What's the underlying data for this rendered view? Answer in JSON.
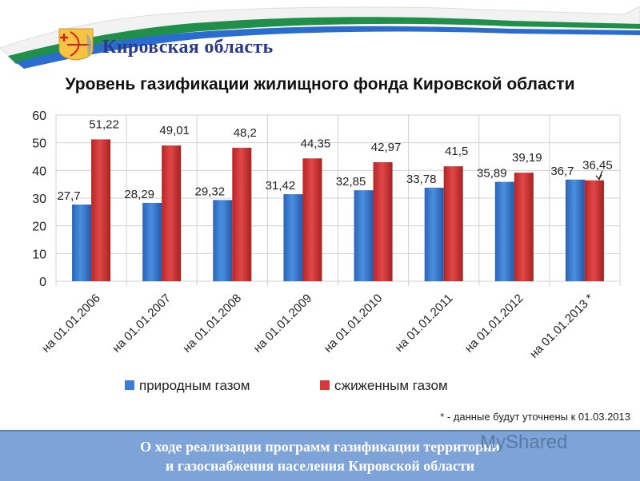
{
  "header": {
    "region_title": "Кировская область",
    "ribbon_colors": [
      "#ffffff",
      "#1f8f4a",
      "#2b6ccf"
    ]
  },
  "chart_title": "Уровень газификации жилищного фонда Кировской области",
  "chart_data": {
    "type": "bar",
    "title": "Уровень газификации жилищного фонда Кировской области",
    "categories": [
      "на 01.01.2006",
      "на 01.01.2007",
      "на 01.01.2008",
      "на 01.01.2009",
      "на 01.01.2010",
      "на 01.01.2011",
      "на 01.01.2012",
      "на 01.01.2013 *"
    ],
    "series": [
      {
        "name": "природным газом",
        "color": "#3a7fd5",
        "values": [
          27.7,
          28.29,
          29.32,
          31.42,
          32.85,
          33.78,
          35.89,
          36.7
        ],
        "labels": [
          "27,7",
          "28,29",
          "29,32",
          "31,42",
          "32,85",
          "33,78",
          "35,89",
          "36,7"
        ]
      },
      {
        "name": "сжиженным газом",
        "color": "#d83a3a",
        "values": [
          51.22,
          49.01,
          48.2,
          44.35,
          42.97,
          41.5,
          39.19,
          36.45
        ],
        "labels": [
          "51,22",
          "49,01",
          "48,2",
          "44,35",
          "42,97",
          "41,5",
          "39,19",
          "36,45"
        ]
      }
    ],
    "xlabel": "",
    "ylabel": "",
    "ylim": [
      0,
      60
    ],
    "yticks": [
      0,
      10,
      20,
      30,
      40,
      50,
      60
    ],
    "grid": true,
    "legend_position": "bottom"
  },
  "footnote": "* - данные будут уточнены к 01.03.2013",
  "footer": {
    "line1": "О ходе реализации программ газификации территории",
    "line2": "и газоснабжения населения Кировской области"
  },
  "watermark": "MyShared"
}
